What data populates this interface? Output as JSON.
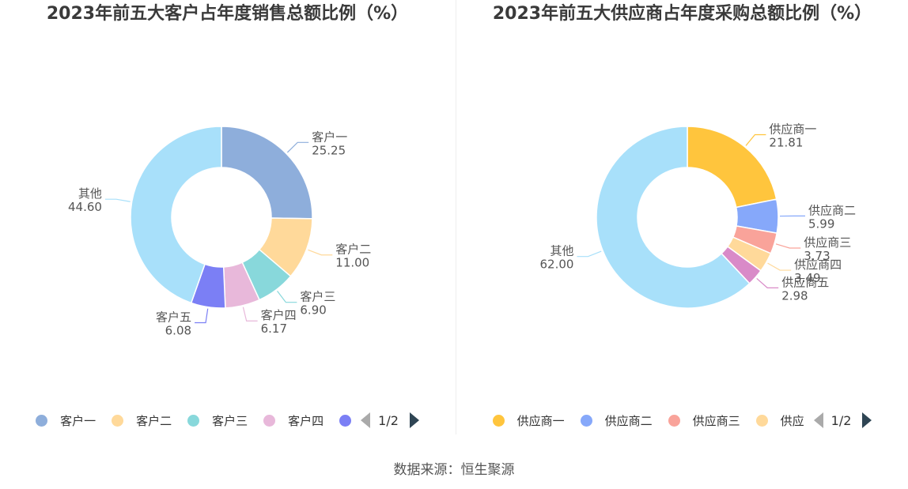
{
  "source": "数据来源：恒生聚源",
  "chart_data": [
    {
      "type": "pie",
      "title": "2023年前五大客户占年度销售总额比例（%）",
      "slices": [
        {
          "name": "客户一",
          "value": 25.25,
          "color": "#8eaedb"
        },
        {
          "name": "客户二",
          "value": 11.0,
          "color": "#ffd99a"
        },
        {
          "name": "客户三",
          "value": 6.9,
          "color": "#88d8db"
        },
        {
          "name": "客户四",
          "value": 6.17,
          "color": "#e8b8da"
        },
        {
          "name": "客户五",
          "value": 6.08,
          "color": "#7b7ff5"
        },
        {
          "name": "其他",
          "value": 44.6,
          "color": "#a8e0fa"
        }
      ],
      "value_labels": [
        "25.25",
        "11.00",
        "6.90",
        "6.17",
        "6.08",
        "44.60"
      ],
      "legend": {
        "placement": "bottom",
        "items": [
          "客户一",
          "客户二",
          "客户三",
          "客户四"
        ],
        "page": "1/2"
      }
    },
    {
      "type": "pie",
      "title": "2023年前五大供应商占年度采购总额比例（%）",
      "slices": [
        {
          "name": "供应商一",
          "value": 21.81,
          "color": "#ffc53d"
        },
        {
          "name": "供应商二",
          "value": 5.99,
          "color": "#86a8fa"
        },
        {
          "name": "供应商三",
          "value": 3.73,
          "color": "#f9a39a"
        },
        {
          "name": "供应商四",
          "value": 3.49,
          "color": "#ffd99a"
        },
        {
          "name": "供应商五",
          "value": 2.98,
          "color": "#d98ac8"
        },
        {
          "name": "其他",
          "value": 62.0,
          "color": "#a8e0fa"
        }
      ],
      "value_labels": [
        "21.81",
        "5.99",
        "3.73",
        "3.49",
        "2.98",
        "62.00"
      ],
      "legend": {
        "placement": "bottom",
        "items": [
          "供应商一",
          "供应商二",
          "供应商三",
          "供应"
        ],
        "page": "1/2"
      }
    }
  ]
}
